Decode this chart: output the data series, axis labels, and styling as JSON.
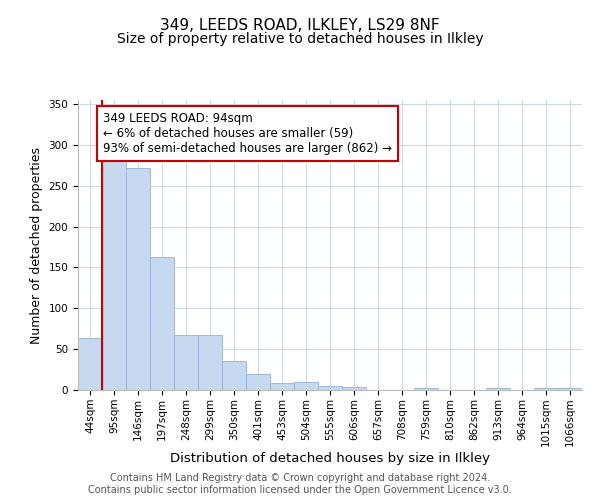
{
  "title1": "349, LEEDS ROAD, ILKLEY, LS29 8NF",
  "title2": "Size of property relative to detached houses in Ilkley",
  "xlabel": "Distribution of detached houses by size in Ilkley",
  "ylabel": "Number of detached properties",
  "categories": [
    "44sqm",
    "95sqm",
    "146sqm",
    "197sqm",
    "248sqm",
    "299sqm",
    "350sqm",
    "401sqm",
    "453sqm",
    "504sqm",
    "555sqm",
    "606sqm",
    "657sqm",
    "708sqm",
    "759sqm",
    "810sqm",
    "862sqm",
    "913sqm",
    "964sqm",
    "1015sqm",
    "1066sqm"
  ],
  "values": [
    64,
    283,
    272,
    163,
    67,
    67,
    35,
    20,
    9,
    10,
    5,
    4,
    0,
    0,
    3,
    0,
    0,
    2,
    0,
    2,
    2
  ],
  "bar_color": "#c6d9f0",
  "bar_edge_color": "#a0b8d8",
  "marker_color": "#cc0000",
  "annotation_text": "349 LEEDS ROAD: 94sqm\n← 6% of detached houses are smaller (59)\n93% of semi-detached houses are larger (862) →",
  "annotation_box_color": "white",
  "annotation_box_edge_color": "#cc0000",
  "grid_color": "#d0d8e8",
  "background_color": "#ffffff",
  "ylim": [
    0,
    355
  ],
  "footer_text": "Contains HM Land Registry data © Crown copyright and database right 2024.\nContains public sector information licensed under the Open Government Licence v3.0.",
  "title1_fontsize": 11,
  "title2_fontsize": 10,
  "xlabel_fontsize": 9.5,
  "ylabel_fontsize": 9,
  "tick_fontsize": 7.5,
  "footer_fontsize": 7,
  "ann_fontsize": 8.5
}
